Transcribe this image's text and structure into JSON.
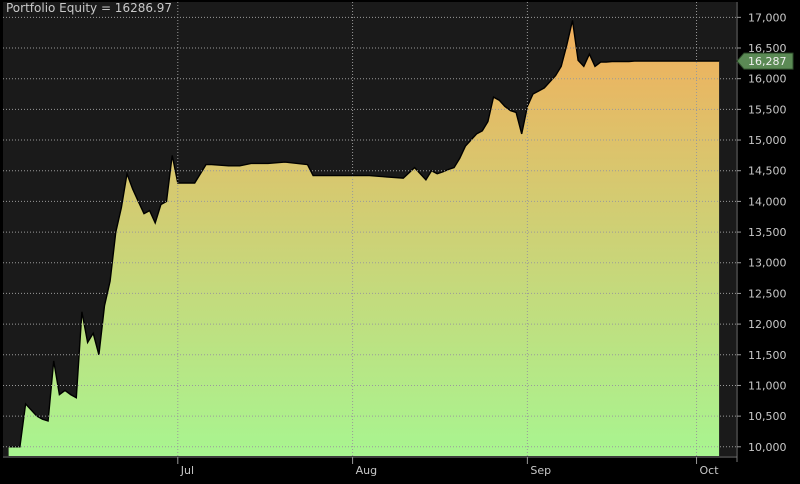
{
  "title": "Portfolio Equity = 16286.97",
  "colors": {
    "background": "#000000",
    "plot_background": "#1a1a1a",
    "grid": "#9a9a9a",
    "fill_bottom": "#a8f590",
    "fill_top": "#f2ae5c",
    "line": "#000000",
    "tick_text": "#c8c8c8",
    "marker": "#5b8a55"
  },
  "chart_data": {
    "type": "area",
    "title": "Portfolio Equity = 16286.97",
    "xlabel": "",
    "ylabel": "",
    "x_ticks": [
      "Jul",
      "Aug",
      "Sep",
      "Oct"
    ],
    "y_ticks": [
      "10,000",
      "10,500",
      "11,000",
      "11,500",
      "12,000",
      "12,500",
      "13,000",
      "13,500",
      "14,000",
      "14,500",
      "15,000",
      "15,500",
      "16,000",
      "16,500",
      "17,000"
    ],
    "ylim": [
      9850,
      17250
    ],
    "grid": true,
    "last_value_label": "16,287",
    "last_value": 16286.97,
    "series": [
      {
        "x": [
          "2023-06-01",
          "2023-06-03",
          "2023-06-04",
          "2023-06-06",
          "2023-06-07",
          "2023-06-08",
          "2023-06-09",
          "2023-06-10",
          "2023-06-11",
          "2023-06-12",
          "2023-06-13",
          "2023-06-14",
          "2023-06-15",
          "2023-06-16",
          "2023-06-17",
          "2023-06-18",
          "2023-06-19",
          "2023-06-20",
          "2023-06-21",
          "2023-06-22",
          "2023-06-23",
          "2023-06-24",
          "2023-06-25",
          "2023-06-26",
          "2023-06-27",
          "2023-06-28",
          "2023-06-29",
          "2023-06-30",
          "2023-07-01",
          "2023-07-02",
          "2023-07-04",
          "2023-07-06",
          "2023-07-07",
          "2023-07-10",
          "2023-07-12",
          "2023-07-14",
          "2023-07-17",
          "2023-07-20",
          "2023-07-24",
          "2023-07-25",
          "2023-07-27",
          "2023-07-31",
          "2023-08-02",
          "2023-08-04",
          "2023-08-07",
          "2023-08-10",
          "2023-08-12",
          "2023-08-14",
          "2023-08-15",
          "2023-08-16",
          "2023-08-17",
          "2023-08-18",
          "2023-08-19",
          "2023-08-20",
          "2023-08-21",
          "2023-08-22",
          "2023-08-23",
          "2023-08-24",
          "2023-08-25",
          "2023-08-26",
          "2023-08-27",
          "2023-08-28",
          "2023-08-29",
          "2023-08-30",
          "2023-08-31",
          "2023-09-01",
          "2023-09-02",
          "2023-09-03",
          "2023-09-04",
          "2023-09-05",
          "2023-09-06",
          "2023-09-07",
          "2023-09-08",
          "2023-09-09",
          "2023-09-10",
          "2023-09-11",
          "2023-09-12",
          "2023-09-13",
          "2023-09-14",
          "2023-09-15",
          "2023-09-16",
          "2023-09-17",
          "2023-09-18",
          "2023-09-19",
          "2023-09-20",
          "2023-09-22",
          "2023-09-25",
          "2023-09-28",
          "2023-10-01",
          "2023-10-03",
          "2023-10-05"
        ],
        "values": [
          10000,
          10000,
          10700,
          10500,
          10450,
          10420,
          11400,
          10850,
          10920,
          10850,
          10800,
          12200,
          11700,
          11850,
          11500,
          12300,
          12700,
          13500,
          13900,
          14450,
          14200,
          14000,
          13800,
          13850,
          13650,
          13950,
          14000,
          14750,
          14300,
          14300,
          14300,
          14600,
          14600,
          14580,
          14580,
          14620,
          14620,
          14640,
          14600,
          14420,
          14420,
          14420,
          14420,
          14420,
          14400,
          14380,
          14550,
          14350,
          14500,
          14450,
          14480,
          14520,
          14550,
          14700,
          14900,
          15000,
          15100,
          15150,
          15300,
          15700,
          15650,
          15550,
          15480,
          15450,
          15100,
          15550,
          15750,
          15800,
          15850,
          15950,
          16050,
          16200,
          16550,
          16950,
          16300,
          16200,
          16400,
          16200,
          16270,
          16270,
          16280,
          16280,
          16280,
          16280,
          16287,
          16287,
          16287,
          16287,
          16287,
          16287,
          16287
        ]
      }
    ]
  }
}
